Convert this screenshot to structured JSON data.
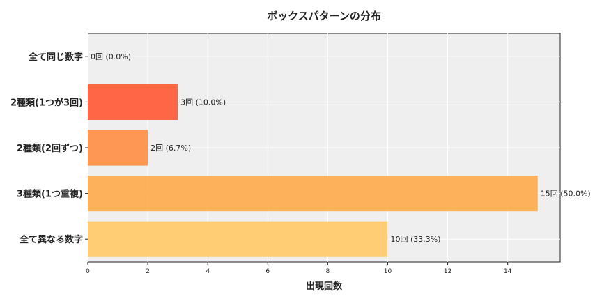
{
  "chart_data": {
    "type": "bar",
    "orientation": "horizontal",
    "title": "ボックスパターンの分布",
    "xlabel": "出現回数",
    "ylabel": "",
    "categories": [
      "全て同じ数字",
      "2種類(1つが3回)",
      "2種類(2回ずつ)",
      "3種類(1つ重複)",
      "全て異なる数字"
    ],
    "values": [
      0,
      3,
      2,
      15,
      10
    ],
    "data_labels": [
      "0回 (0.0%)",
      "3回 (10.0%)",
      "2回 (6.7%)",
      "15回 (50.0%)",
      "10回 (33.3%)"
    ],
    "bar_colors": [
      "#ff7f50",
      "#ff5733",
      "#ff8c42",
      "#ffaa4a",
      "#ffc966"
    ],
    "xlim": [
      0,
      15.75
    ],
    "xticks": [
      0,
      2,
      4,
      6,
      8,
      10,
      12,
      14
    ],
    "grid": true,
    "plot_background": "#efefef",
    "grid_color": "#ffffff"
  }
}
